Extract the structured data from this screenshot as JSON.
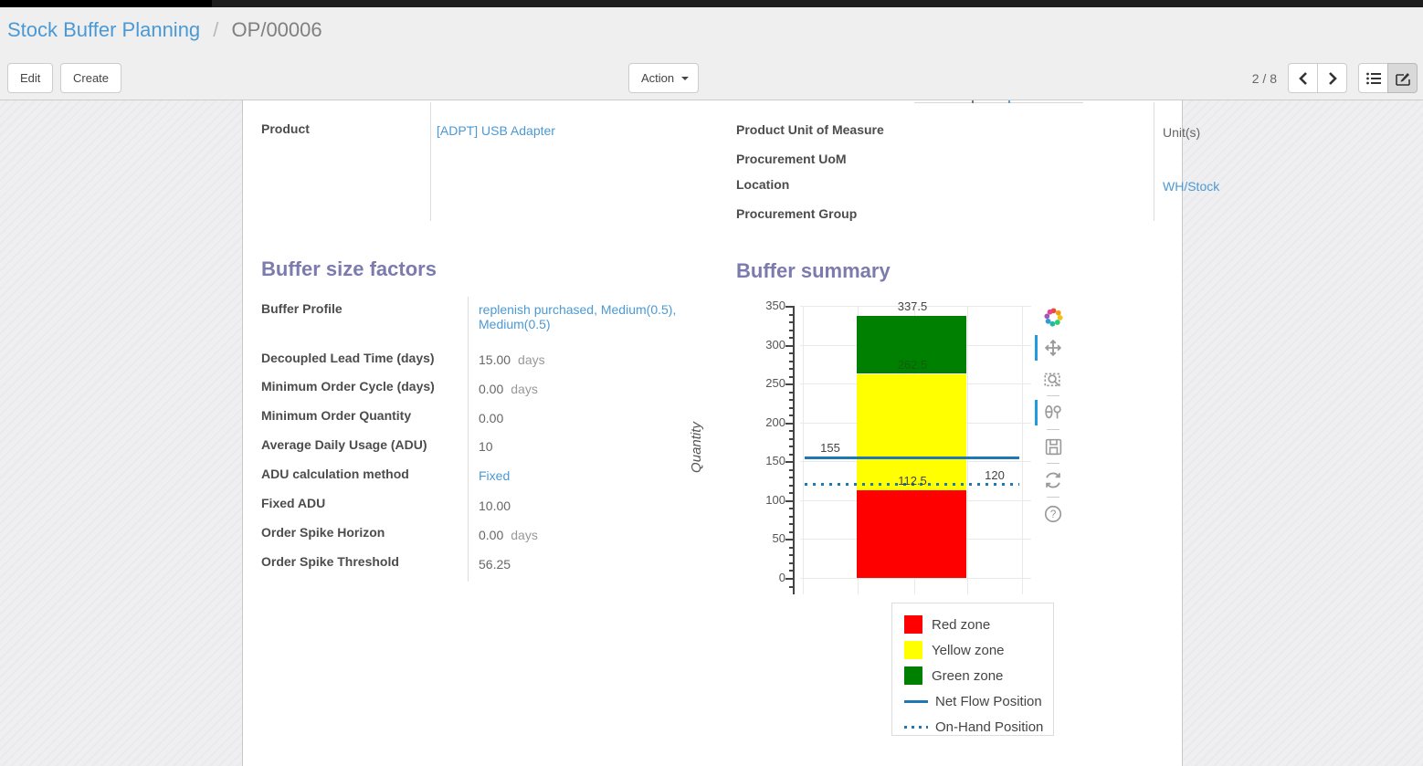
{
  "breadcrumb": {
    "section": "Stock Buffer Planning",
    "separator": "/",
    "record": "OP/00006"
  },
  "control_panel": {
    "edit_label": "Edit",
    "create_label": "Create",
    "action_label": "Action",
    "pager": "2 / 8",
    "icons": [
      "chevron-left-icon",
      "chevron-right-icon",
      "list-view-icon",
      "form-view-icon"
    ],
    "active_view": "form"
  },
  "form": {
    "top_left": [
      {
        "label": "Product",
        "value": "[ADPT] USB Adapter"
      }
    ],
    "top_right": [
      {
        "label": "Product Unit of Measure",
        "value": "Unit(s)"
      },
      {
        "label": "Procurement UoM",
        "value": ""
      },
      {
        "label": "Location",
        "value": "WH/Stock"
      },
      {
        "label": "Procurement Group",
        "value": ""
      }
    ],
    "buffer_factors": {
      "title": "Buffer size factors",
      "fields": [
        {
          "label": "Buffer Profile",
          "value": "replenish purchased, Medium(0.5), Medium(0.5)"
        },
        {
          "label": "Decoupled Lead Time (days)",
          "value": "15.00",
          "unit": "days"
        },
        {
          "label": "Minimum Order Cycle (days)",
          "value": "0.00",
          "unit": "days"
        },
        {
          "label": "Minimum Order Quantity",
          "value": "0.00"
        },
        {
          "label": "Average Daily Usage (ADU)",
          "value": "10"
        },
        {
          "label": "ADU calculation method",
          "value": "Fixed"
        },
        {
          "label": "Fixed ADU",
          "value": "10.00"
        },
        {
          "label": "Order Spike Horizon",
          "value": "0.00",
          "unit": "days"
        },
        {
          "label": "Order Spike Threshold",
          "value": "56.25"
        }
      ]
    },
    "buffer_summary_title": "Buffer summary"
  },
  "chart_data": {
    "type": "bar",
    "title": "Buffer summary",
    "ylabel": "Quantity",
    "ylim": [
      0,
      350
    ],
    "ytick_step": 50,
    "grid": true,
    "legend_position": "bottom-right",
    "zones": [
      {
        "name": "Red zone",
        "from": 0,
        "to": 112.5,
        "color": "#ff0000"
      },
      {
        "name": "Yellow zone",
        "from": 112.5,
        "to": 262.5,
        "color": "#ffff00"
      },
      {
        "name": "Green zone",
        "from": 262.5,
        "to": 337.5,
        "color": "#008000"
      }
    ],
    "lines": [
      {
        "name": "Net Flow Position",
        "value": 155,
        "style": "solid",
        "color": "#1f77b4"
      },
      {
        "name": "On-Hand Position",
        "value": 120,
        "style": "dotted",
        "color": "#1f77b4"
      }
    ],
    "annotations": [
      {
        "text": "337.5",
        "value": 337.5,
        "anchor": "center",
        "muted": false
      },
      {
        "text": "262.5",
        "value": 262.5,
        "anchor": "center",
        "muted": true
      },
      {
        "text": "155",
        "value": 155,
        "anchor": "left",
        "muted": false
      },
      {
        "text": "112.5",
        "value": 112.5,
        "anchor": "center",
        "muted": false
      },
      {
        "text": "120",
        "value": 120,
        "anchor": "right",
        "muted": false
      }
    ],
    "modebar_icons": [
      "plotly-logo-icon",
      "pan-icon",
      "box-zoom-icon",
      "hover-compare-icon",
      "save-icon",
      "reset-axes-icon",
      "help-icon"
    ]
  },
  "colors": {
    "link": "#4b99d4",
    "heading": "#7c7bad",
    "accent_blue": "#1f77b4",
    "modebar_active": "#1f9bde",
    "red_zone": "#ff0000",
    "yellow_zone": "#ffff00",
    "green_zone": "#008000"
  }
}
